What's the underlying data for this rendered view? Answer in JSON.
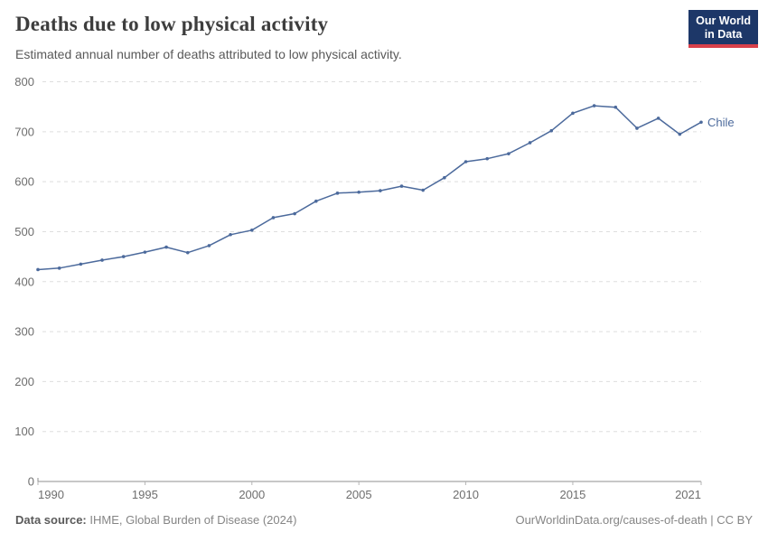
{
  "header": {
    "title": "Deaths due to low physical activity",
    "subtitle": "Estimated annual number of deaths attributed to low physical activity.",
    "logo": {
      "line1": "Our World",
      "line2": "in Data",
      "bg_color": "#1D3768",
      "accent_color": "#D8404A"
    }
  },
  "chart_data": {
    "type": "line",
    "title": "Deaths due to low physical activity",
    "subtitle": "Estimated annual number of deaths attributed to low physical activity.",
    "x": [
      1990,
      1991,
      1992,
      1993,
      1994,
      1995,
      1996,
      1997,
      1998,
      1999,
      2000,
      2001,
      2002,
      2003,
      2004,
      2005,
      2006,
      2007,
      2008,
      2009,
      2010,
      2011,
      2012,
      2013,
      2014,
      2015,
      2016,
      2017,
      2018,
      2019,
      2020,
      2021
    ],
    "series": [
      {
        "name": "Chile",
        "color": "#4C6A9C",
        "values": [
          424,
          427,
          435,
          443,
          450,
          459,
          469,
          458,
          472,
          494,
          503,
          528,
          536,
          561,
          577,
          579,
          582,
          591,
          583,
          608,
          640,
          646,
          656,
          678,
          702,
          737,
          752,
          749,
          707,
          727,
          695,
          719
        ]
      }
    ],
    "xlabel": "",
    "ylabel": "",
    "xlim": [
      1990,
      2021
    ],
    "ylim": [
      0,
      800
    ],
    "xticks": [
      1990,
      1995,
      2000,
      2005,
      2010,
      2015,
      2021
    ],
    "yticks": [
      0,
      100,
      200,
      300,
      400,
      500,
      600,
      700,
      800
    ],
    "grid": "horizontal-dashed",
    "legend": "end-of-line entity label",
    "entity_label": "Chile",
    "colors": {
      "line": "#4C6A9C",
      "gridline": "#dedede",
      "axis_line": "#8f8f8f",
      "tick": "#b5b5b5",
      "tick_label": "#6e6e6e"
    }
  },
  "footer": {
    "source_label": "Data source:",
    "source_value": " IHME, Global Burden of Disease (2024)",
    "attribution": "OurWorldinData.org/causes-of-death | CC BY"
  }
}
